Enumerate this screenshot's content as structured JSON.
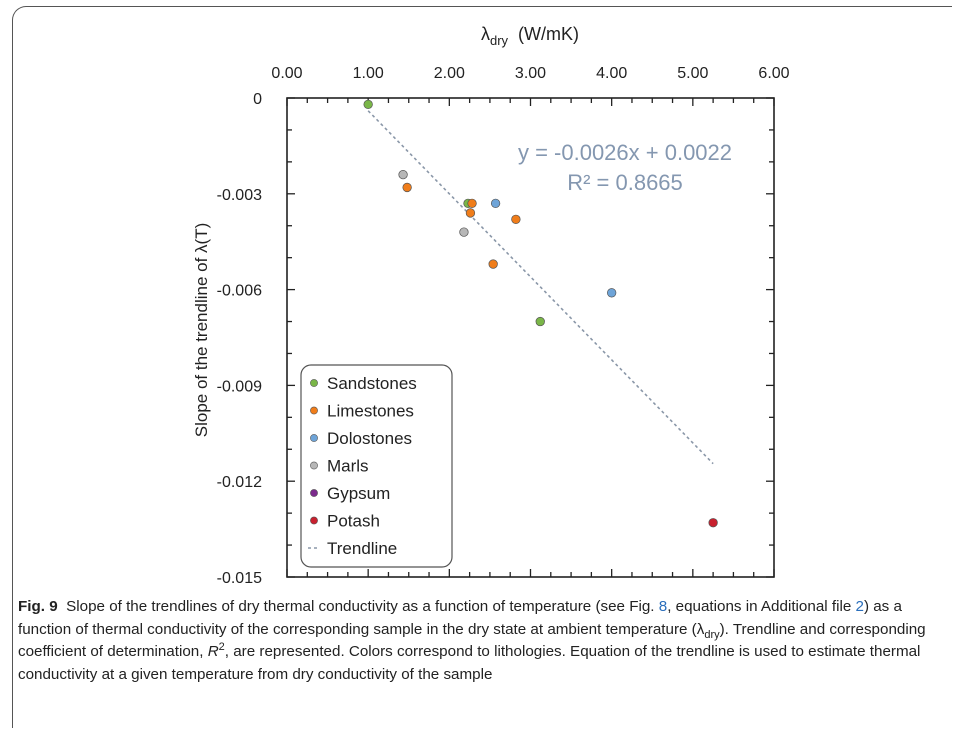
{
  "chart_data": {
    "type": "scatter",
    "xlabel_main": "λ",
    "xlabel_sub": "dry",
    "xlabel_unit": "(W/mK)",
    "ylabel": "Slope of the trendline of λ(T)",
    "x_axis_position": "top",
    "xlim": [
      0,
      6
    ],
    "ylim": [
      -0.015,
      0
    ],
    "x_ticks": [
      "0.00",
      "1.00",
      "2.00",
      "3.00",
      "4.00",
      "5.00",
      "6.00"
    ],
    "y_ticks": [
      "0",
      "-0.003",
      "-0.006",
      "-0.009",
      "-0.012",
      "-0.015"
    ],
    "grid": false,
    "legend_position": "bottom-left",
    "series": [
      {
        "name": "Sandstones",
        "color": "#7ab648",
        "points": [
          {
            "x": 1.0,
            "y": -0.0002
          },
          {
            "x": 2.23,
            "y": -0.0033
          },
          {
            "x": 3.12,
            "y": -0.007
          }
        ]
      },
      {
        "name": "Limestones",
        "color": "#f07d1a",
        "points": [
          {
            "x": 1.48,
            "y": -0.0028
          },
          {
            "x": 2.28,
            "y": -0.0033
          },
          {
            "x": 2.26,
            "y": -0.0036
          },
          {
            "x": 2.82,
            "y": -0.0038
          },
          {
            "x": 2.54,
            "y": -0.0052
          }
        ]
      },
      {
        "name": "Dolostones",
        "color": "#6ea4d8",
        "points": [
          {
            "x": 2.57,
            "y": -0.0033
          },
          {
            "x": 4.0,
            "y": -0.0061
          }
        ]
      },
      {
        "name": "Marls",
        "color": "#b7b7b7",
        "points": [
          {
            "x": 1.43,
            "y": -0.0024
          },
          {
            "x": 2.18,
            "y": -0.0042
          }
        ]
      },
      {
        "name": "Gypsum",
        "color": "#7b2a8c",
        "points": []
      },
      {
        "name": "Potash",
        "color": "#c8202e",
        "points": [
          {
            "x": 5.25,
            "y": -0.0133
          }
        ]
      }
    ],
    "trendline": {
      "name": "Trendline",
      "slope": -0.0026,
      "intercept": 0.0022,
      "x_range": [
        1.0,
        5.25
      ],
      "color": "#8a97a8"
    },
    "equation_text": "y = -0.0026x + 0.0022",
    "r2_text": "R² = 0.8665"
  },
  "caption": {
    "fig_label": "Fig. 9",
    "p1": "Slope of the trendlines of dry thermal conductivity as a function of temperature (see Fig. ",
    "ref_fig": "8",
    "p2": ", equations in Additional file ",
    "ref_file": "2",
    "p3": ") as a function of thermal conductivity of the corresponding sample in the dry state at ambient temperature (λ",
    "sub_dry": "dry",
    "p4": "). Trendline and corresponding coefficient of determination, ",
    "r_symbol": "R",
    "sup_2": "2",
    "p5": ", are represented. Colors correspond to lithologies. Equation of the trendline is used to estimate thermal conductivity at a given temperature from dry conductivity of the sample"
  }
}
